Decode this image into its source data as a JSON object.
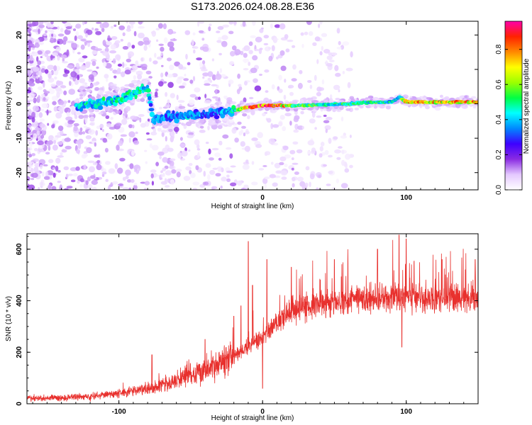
{
  "title": "S173.2026.024.08.28.E36",
  "chart_data": [
    {
      "type": "heatmap",
      "xlabel": "Height of straight line (km)",
      "ylabel": "Frequency (Hz)",
      "xlim": [
        -164,
        150
      ],
      "ylim": [
        -25,
        24
      ],
      "xticks": [
        -100,
        0,
        100
      ],
      "yticks": [
        -20,
        -10,
        0,
        10,
        20
      ],
      "colorbar": {
        "label": "Normalized spectral amplitude",
        "range": [
          0,
          0.96
        ],
        "ticks": [
          0.0,
          0.2,
          0.4,
          0.6,
          0.8
        ],
        "colormap": [
          "#ffffff",
          "#e4c8ff",
          "#8a2be2",
          "#3d00ff",
          "#0088ff",
          "#00ffff",
          "#00ff44",
          "#9cff00",
          "#ffff00",
          "#ff8800",
          "#ff2200",
          "#ff00aa"
        ]
      },
      "ridge": {
        "x": [
          -130,
          -120,
          -110,
          -100,
          -90,
          -80,
          -76,
          -70,
          -60,
          -50,
          -40,
          -30,
          -20,
          -10,
          0,
          10,
          20,
          40,
          60,
          80,
          90,
          95,
          100,
          120,
          150
        ],
        "frequency": [
          -1,
          0,
          0.5,
          1,
          3,
          5,
          -5,
          -4,
          -3.5,
          -3.5,
          -3,
          -2.5,
          -2,
          -1,
          -0.5,
          -0.5,
          -0.5,
          -0.3,
          0,
          0.5,
          0.5,
          2,
          0.5,
          0.5,
          0.5
        ],
        "amplitude": [
          0.4,
          0.45,
          0.45,
          0.45,
          0.45,
          0.45,
          0.35,
          0.35,
          0.35,
          0.4,
          0.35,
          0.35,
          0.45,
          0.85,
          0.85,
          0.85,
          0.6,
          0.5,
          0.5,
          0.5,
          0.45,
          0.4,
          0.75,
          0.75,
          0.75
        ]
      }
    },
    {
      "type": "line",
      "xlabel": "Height of straight line (km)",
      "ylabel": "SNR (10 * v/v)",
      "xlim": [
        -164,
        150
      ],
      "ylim": [
        0,
        660
      ],
      "xticks": [
        -100,
        0,
        100
      ],
      "yticks": [
        0,
        200,
        400,
        600
      ],
      "color": "#e8302d",
      "envelope": {
        "x": [
          -164,
          -140,
          -120,
          -100,
          -80,
          -60,
          -40,
          -20,
          -10,
          0,
          10,
          20,
          40,
          60,
          80,
          100,
          120,
          150
        ],
        "y": [
          20,
          22,
          28,
          40,
          60,
          90,
          130,
          180,
          220,
          260,
          320,
          360,
          390,
          400,
          410,
          410,
          410,
          410
        ]
      },
      "spikes": [
        {
          "x": -77,
          "y": 190
        },
        {
          "x": -40,
          "y": 250
        },
        {
          "x": -20,
          "y": 340
        },
        {
          "x": -15,
          "y": 380
        },
        {
          "x": -10,
          "y": 630
        },
        {
          "x": -7,
          "y": 460
        },
        {
          "x": 0,
          "y": 60
        },
        {
          "x": 3,
          "y": 560
        },
        {
          "x": 20,
          "y": 530
        },
        {
          "x": 50,
          "y": 560
        },
        {
          "x": 80,
          "y": 600
        },
        {
          "x": 95,
          "y": 655
        },
        {
          "x": 97,
          "y": 220
        },
        {
          "x": 100,
          "y": 640
        },
        {
          "x": 125,
          "y": 560
        },
        {
          "x": 148,
          "y": 560
        }
      ]
    }
  ]
}
